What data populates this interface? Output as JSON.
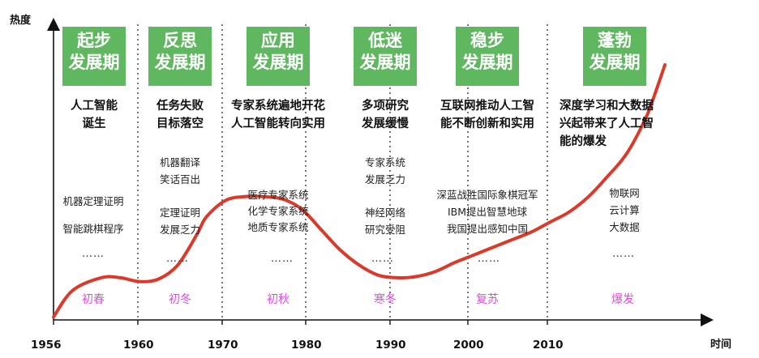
{
  "chart_data": {
    "type": "line",
    "ylabel": "热度",
    "xlabel": "时间",
    "x_ticks": [
      1956,
      1960,
      1970,
      1980,
      1990,
      2000,
      2010
    ],
    "x_range": [
      1956,
      2020
    ],
    "grid": false,
    "legend": "none",
    "series": [
      {
        "x": [
          1956,
          1958,
          1961,
          1963,
          1965,
          1967,
          1969,
          1971,
          1972,
          1974,
          1976,
          1978,
          1980,
          1982,
          1984,
          1986,
          1988,
          1990,
          1992,
          1994,
          1996,
          1998,
          2000,
          2002,
          2004,
          2006,
          2008,
          2010,
          2012,
          2014,
          2016,
          2018,
          2019,
          2020
        ],
        "y": [
          0.5,
          11,
          16,
          16,
          14.5,
          15.5,
          21,
          33,
          40,
          46.5,
          48,
          48,
          47,
          43,
          35,
          27,
          21,
          17,
          16,
          16.5,
          18.5,
          22,
          25,
          28,
          31,
          34,
          38,
          42,
          48,
          56,
          65,
          79,
          89,
          100
        ],
        "color": "#d93a2b"
      }
    ],
    "phases": [
      {
        "label_line1": "起步",
        "label_line2": "发展期",
        "headline": [
          "人工智能",
          "诞生"
        ],
        "details": [
          "机器定理证明",
          "智能跳棋程序"
        ],
        "ellipsis": "……",
        "season": "初春"
      },
      {
        "label_line1": "反思",
        "label_line2": "发展期",
        "headline": [
          "任务失败",
          "目标落空"
        ],
        "details": [
          "机器翻译",
          "笑话百出",
          "定理证明",
          "发展乏力"
        ],
        "ellipsis": "……",
        "season": "初冬"
      },
      {
        "label_line1": "应用",
        "label_line2": "发展期",
        "headline": [
          "专家系统遍地开花",
          "人工智能转向实用"
        ],
        "details": [
          "医疗专家系统",
          "化学专家系统",
          "地质专家系统"
        ],
        "ellipsis": "……",
        "season": "初秋"
      },
      {
        "label_line1": "低迷",
        "label_line2": "发展期",
        "headline": [
          "多项研究",
          "发展缓慢"
        ],
        "details": [
          "专家系统",
          "发展乏力",
          "神经网络",
          "研究受阻"
        ],
        "ellipsis": "……",
        "season": "寒冬"
      },
      {
        "label_line1": "稳步",
        "label_line2": "发展期",
        "headline": [
          "互联网推动人工智",
          "能不断创新和实用"
        ],
        "details": [
          "深蓝战胜国际象棋冠军",
          "IBM提出智慧地球",
          "我国提出感知中国"
        ],
        "ellipsis": "……",
        "season": "复苏"
      },
      {
        "label_line1": "蓬勃",
        "label_line2": "发展期",
        "headline": [
          "深度学习和大数据",
          "兴起带来了人工智",
          "能的爆发"
        ],
        "details": [
          "物联网",
          "云计算",
          "大数据"
        ],
        "ellipsis": "……",
        "season": "爆发"
      }
    ],
    "colors": {
      "badge": "#5fb85f",
      "curve": "#d93a2b",
      "season": "#d94ddb",
      "axis": "#111111",
      "divider": "#555555"
    }
  }
}
